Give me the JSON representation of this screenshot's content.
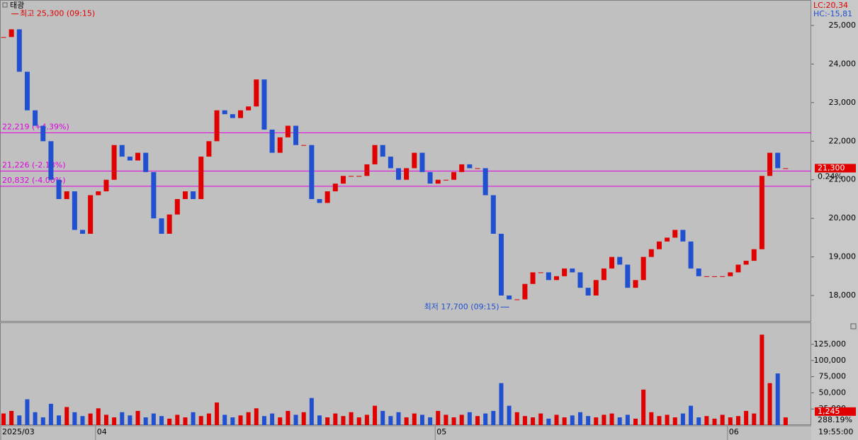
{
  "chart_data": {
    "type": "candlestick",
    "title": "태광",
    "readouts": {
      "lc": "LC:20,34",
      "hc": "HC:-15,81",
      "time": "19:55:00",
      "price_change": "0.24%",
      "volume_change": "288.19%"
    },
    "colors": {
      "up": "#e00000",
      "down": "#2050d0",
      "level": "#e000e0"
    },
    "categories": [
      "2025/03",
      null,
      null,
      null,
      null,
      null,
      null,
      null,
      null,
      null,
      null,
      null,
      "04",
      null,
      null,
      null,
      null,
      null,
      null,
      null,
      null,
      null,
      null,
      null,
      null,
      null,
      null,
      null,
      null,
      null,
      null,
      null,
      null,
      null,
      null,
      null,
      null,
      null,
      null,
      null,
      null,
      null,
      null,
      null,
      null,
      null,
      null,
      null,
      null,
      null,
      null,
      null,
      null,
      null,
      null,
      "05",
      null,
      null,
      null,
      null,
      null,
      null,
      null,
      null,
      null,
      null,
      null,
      null,
      null,
      null,
      null,
      null,
      null,
      null,
      null,
      null,
      null,
      null,
      null,
      null,
      null,
      null,
      null,
      null,
      null,
      null,
      null,
      null,
      null,
      null,
      null,
      null,
      "06",
      null,
      null,
      null,
      null,
      null,
      null,
      null
    ],
    "values": [
      24700,
      24900,
      23800,
      22800,
      22400,
      22000,
      21000,
      20500,
      20700,
      19700,
      19600,
      20600,
      20700,
      21000,
      21900,
      21600,
      21500,
      21700,
      21200,
      20000,
      19600,
      20100,
      20500,
      20700,
      20500,
      21600,
      22000,
      22800,
      22700,
      22600,
      22800,
      22900,
      23600,
      22300,
      21700,
      22100,
      22400,
      21900,
      21900,
      20500,
      20400,
      20700,
      20900,
      21100,
      21100,
      21100,
      21400,
      21900,
      21600,
      21300,
      21000,
      21300,
      21700,
      21200,
      20900,
      21000,
      21000,
      21200,
      21400,
      21300,
      21300,
      20600,
      19600,
      18000,
      17900,
      17900,
      18300,
      18600,
      18600,
      18400,
      18500,
      18700,
      18600,
      18200,
      18000,
      18400,
      18700,
      19000,
      18800,
      18200,
      18400,
      19000,
      19200,
      19400,
      19500,
      19700,
      19400,
      18700,
      18500,
      18500,
      18500,
      18500,
      18600,
      18800,
      18900,
      19200,
      21100,
      21700,
      21300,
      21300
    ],
    "ylim": [
      17340,
      25660
    ],
    "yticks": [
      {
        "value": 18000,
        "label": "18,000"
      },
      {
        "value": 19000,
        "label": "19,000"
      },
      {
        "value": 20000,
        "label": "20,000"
      },
      {
        "value": 21000,
        "label": "21,000"
      },
      {
        "value": 22000,
        "label": "22,000"
      },
      {
        "value": 23000,
        "label": "23,000"
      },
      {
        "value": 24000,
        "label": "24,000"
      },
      {
        "value": 25000,
        "label": "25,000"
      }
    ],
    "levels": [
      {
        "value": 22219,
        "label": "22,219 (+4.39%)"
      },
      {
        "value": 21226,
        "label": "21,226 (-2.18%)"
      },
      {
        "value": 20832,
        "label": "20,832 (-4.00%)"
      }
    ],
    "high": {
      "value": 25300,
      "label": "최고 25,300 (09:15)",
      "index": 1
    },
    "low": {
      "value": 17700,
      "label": "최저 17,700 (09:15)",
      "index": 64
    },
    "last_price": {
      "value": 21300,
      "label": "21,300"
    },
    "volume": {
      "values": [
        18000,
        22000,
        15000,
        40000,
        20000,
        12000,
        33000,
        15000,
        28000,
        20000,
        14000,
        18000,
        26000,
        16000,
        12000,
        20000,
        15000,
        22000,
        12000,
        18000,
        14000,
        10000,
        16000,
        12000,
        20000,
        14000,
        18000,
        35000,
        16000,
        12000,
        15000,
        20000,
        26000,
        14000,
        18000,
        12000,
        22000,
        16000,
        20000,
        42000,
        15000,
        12000,
        18000,
        14000,
        20000,
        12000,
        16000,
        30000,
        22000,
        14000,
        20000,
        12000,
        18000,
        16000,
        12000,
        22000,
        16000,
        12000,
        16000,
        20000,
        14000,
        18000,
        22000,
        65000,
        30000,
        20000,
        14000,
        12000,
        18000,
        10000,
        16000,
        12000,
        15000,
        20000,
        14000,
        12000,
        16000,
        18000,
        12000,
        16000,
        10000,
        55000,
        20000,
        14000,
        16000,
        12000,
        18000,
        30000,
        12000,
        14000,
        10000,
        16000,
        12000,
        14000,
        22000,
        18000,
        140000,
        65000,
        80000,
        12000
      ],
      "ylim": [
        0,
        159000
      ],
      "yticks": [
        {
          "value": 25000,
          "label": "25,000"
        },
        {
          "value": 50000,
          "label": "50,000"
        },
        {
          "value": 75000,
          "label": "75,000"
        },
        {
          "value": 100000,
          "label": "100,000"
        },
        {
          "value": 125000,
          "label": "125,000"
        }
      ],
      "last": {
        "value": 1245,
        "label": "1,245"
      }
    }
  }
}
